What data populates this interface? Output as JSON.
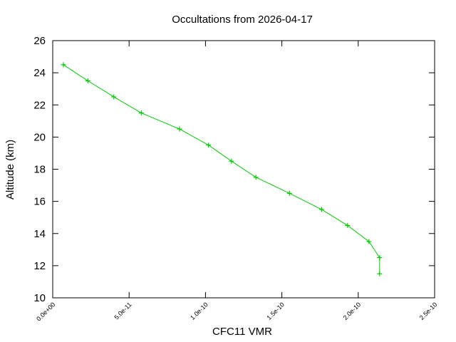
{
  "chart_data": {
    "type": "line",
    "title": "Occultations from 2026-04-17",
    "xlabel": "CFC11 VMR",
    "ylabel": "Altitude (km)",
    "xlim": [
      0,
      2.5e-10
    ],
    "ylim": [
      10,
      26
    ],
    "x_ticks": [
      0,
      5e-11,
      1e-10,
      1.5e-10,
      2e-10,
      2.5e-10
    ],
    "x_tick_labels": [
      "0.0e+00",
      "5.0e-11",
      "1.0e-10",
      "1.5e-10",
      "2.0e-10",
      "2.5e-10"
    ],
    "y_ticks": [
      10,
      12,
      14,
      16,
      18,
      20,
      22,
      24,
      26
    ],
    "y_tick_labels": [
      "10",
      "12",
      "14",
      "16",
      "18",
      "20",
      "22",
      "24",
      "26"
    ],
    "grid": false,
    "series": [
      {
        "color": "#00cc00",
        "marker": "plus",
        "points": [
          {
            "x": 7e-12,
            "y": 24.5
          },
          {
            "x": 2.3e-11,
            "y": 23.5
          },
          {
            "x": 4e-11,
            "y": 22.5
          },
          {
            "x": 5.8e-11,
            "y": 21.5
          },
          {
            "x": 8.3e-11,
            "y": 20.5
          },
          {
            "x": 1.02e-10,
            "y": 19.5
          },
          {
            "x": 1.17e-10,
            "y": 18.5
          },
          {
            "x": 1.33e-10,
            "y": 17.5
          },
          {
            "x": 1.55e-10,
            "y": 16.5
          },
          {
            "x": 1.76e-10,
            "y": 15.5
          },
          {
            "x": 1.93e-10,
            "y": 14.5
          },
          {
            "x": 2.07e-10,
            "y": 13.5
          },
          {
            "x": 2.14e-10,
            "y": 12.5
          },
          {
            "x": 2.14e-10,
            "y": 11.5
          }
        ]
      }
    ]
  }
}
